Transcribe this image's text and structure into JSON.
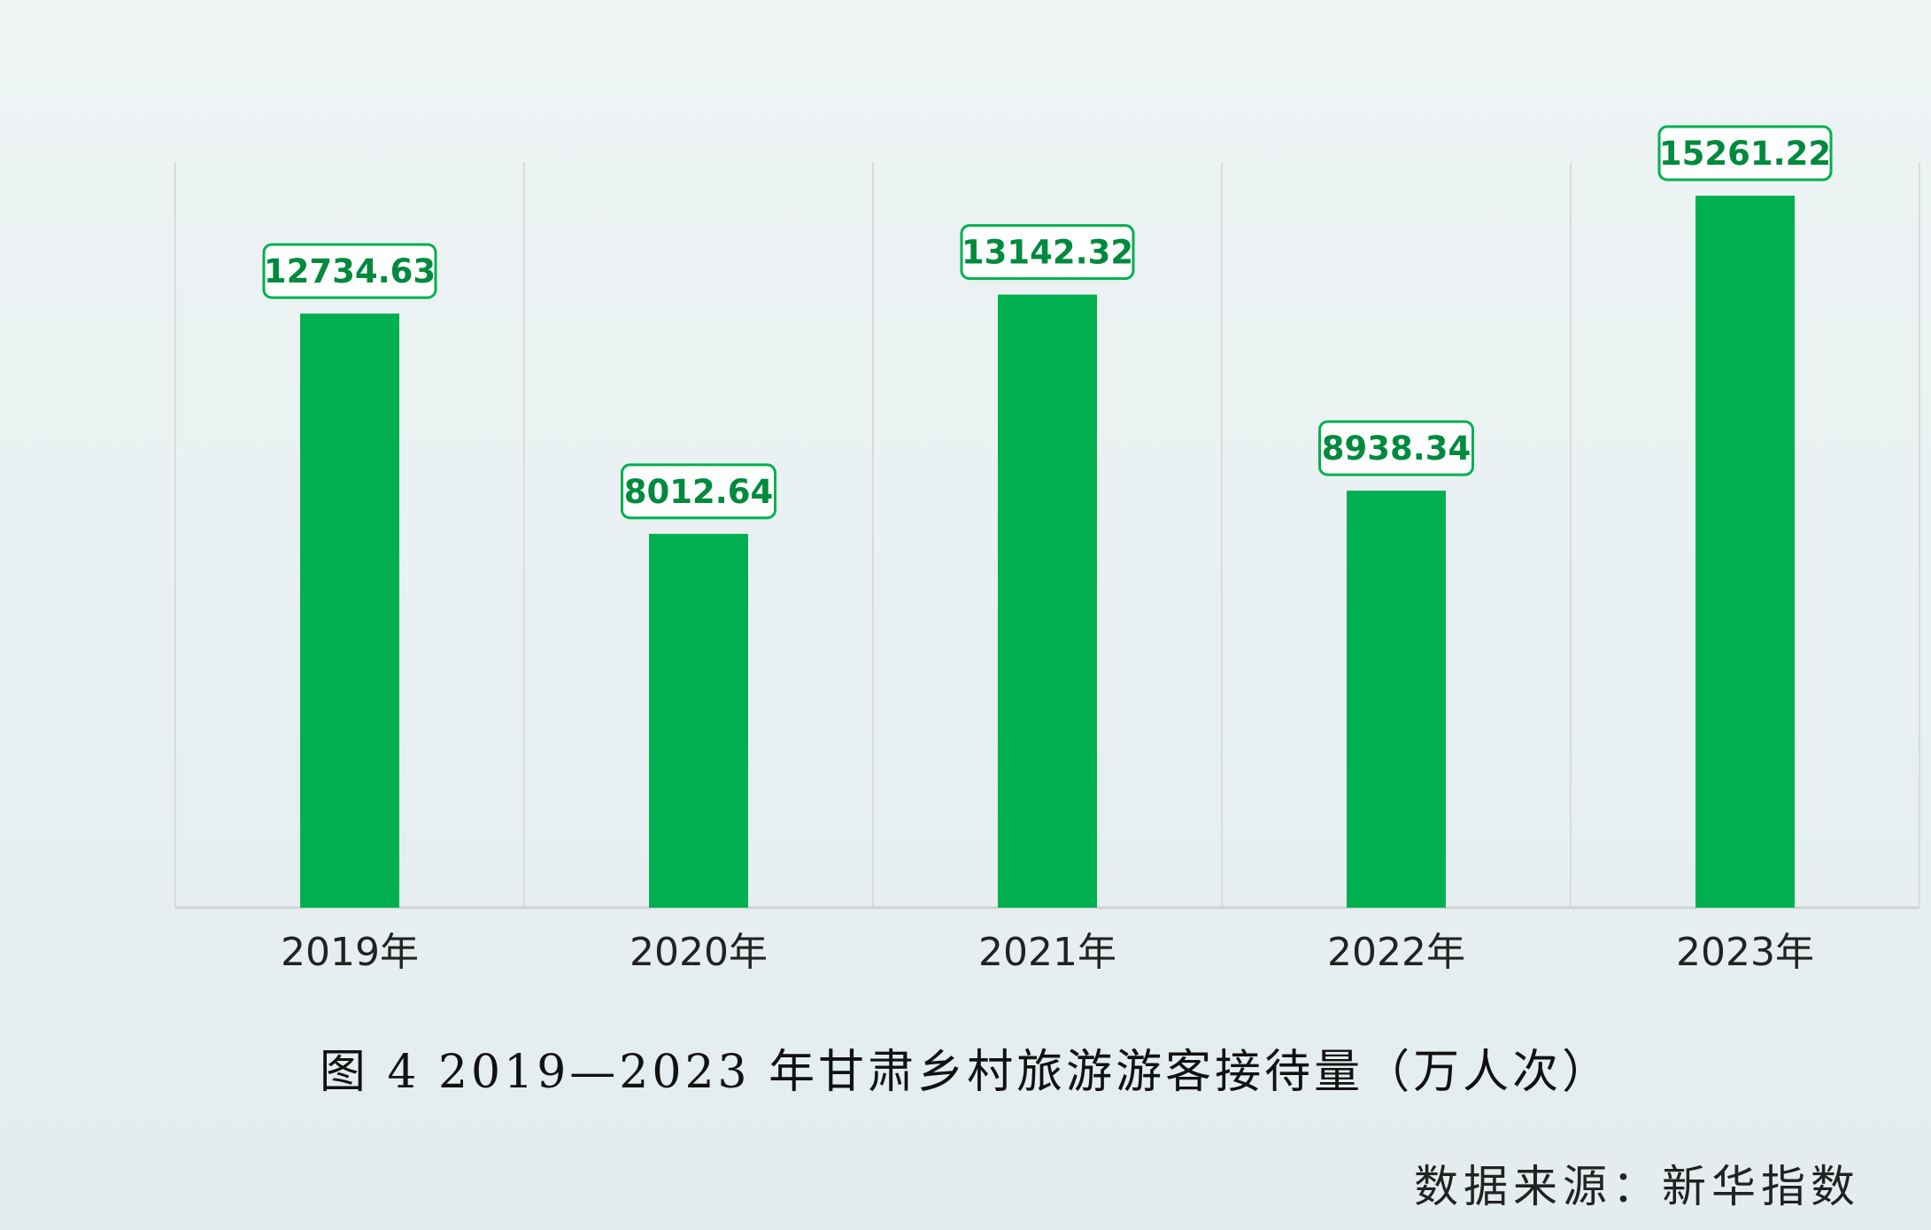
{
  "chart_data": {
    "type": "bar",
    "categories": [
      "2019年",
      "2020年",
      "2021年",
      "2022年",
      "2023年"
    ],
    "values": [
      12734.63,
      8012.64,
      13142.32,
      8938.34,
      15261.22
    ],
    "value_labels": [
      "12734.63",
      "8012.64",
      "13142.32",
      "8938.34",
      "15261.22"
    ],
    "title": "",
    "xlabel": "",
    "ylabel": "",
    "ylim": [
      0,
      16000
    ],
    "grid": "vertical separators",
    "legend": "none",
    "colors": {
      "bar": "#00b050",
      "label_border": "#00b050",
      "label_text": "#008a3e",
      "grid": "#d9dcdc",
      "axis": "#cfd3d3",
      "tick_text": "#222222"
    }
  },
  "caption": "图 4 2019—2023 年甘肃乡村旅游游客接待量（万人次）",
  "source": "数据来源：新华指数"
}
